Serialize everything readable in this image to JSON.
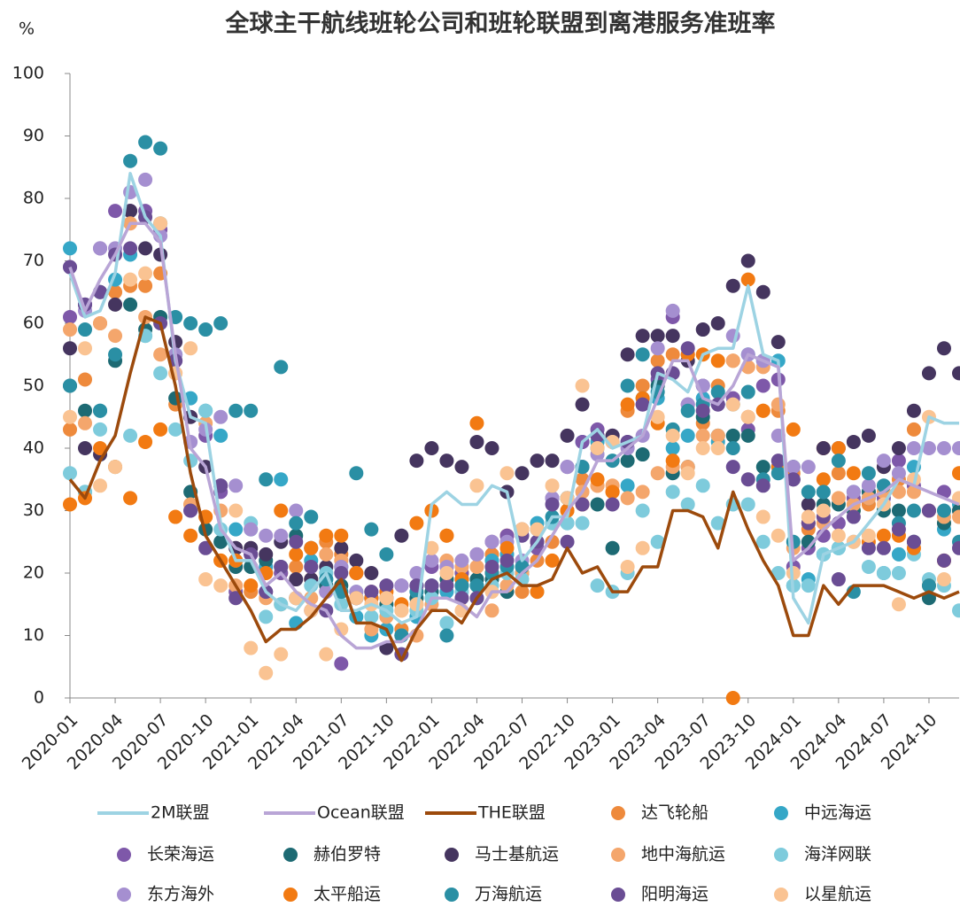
{
  "chart_data": {
    "type": "line",
    "title": "全球主干航线班轮公司和班轮联盟到离港服务准班率",
    "ylabel": "%",
    "categories": [
      "2020-01",
      null,
      null,
      "2020-04",
      null,
      null,
      "2020-07",
      null,
      null,
      "2020-10",
      null,
      null,
      "2021-01",
      null,
      null,
      "2021-04",
      null,
      null,
      "2021-07",
      null,
      null,
      "2021-10",
      null,
      null,
      "2022-01",
      null,
      null,
      "2022-04",
      null,
      null,
      "2022-07",
      null,
      null,
      "2022-10",
      null,
      null,
      "2023-01",
      null,
      null,
      "2023-04",
      null,
      null,
      "2023-07",
      null,
      null,
      "2023-10",
      null,
      null,
      "2024-01",
      null,
      null,
      "2024-04",
      null,
      null,
      "2024-07",
      null,
      null,
      "2024-10",
      null,
      null
    ],
    "ylim": [
      0,
      100
    ],
    "yticks": [
      0,
      10,
      20,
      30,
      40,
      50,
      60,
      70,
      80,
      90,
      100
    ],
    "grid": false,
    "series": [
      {
        "name": "2M联盟",
        "mode": "line",
        "color": "#9dd3e3",
        "values": [
          68,
          61,
          62,
          68,
          84,
          77,
          74,
          54,
          45,
          44,
          28,
          22,
          22,
          17,
          15,
          14,
          17,
          20,
          14,
          14,
          15,
          14,
          12,
          13,
          31,
          33,
          31,
          31,
          34,
          33,
          22,
          25,
          29,
          29,
          41,
          43,
          40,
          41,
          42,
          52,
          51,
          49,
          55,
          56,
          56,
          66,
          55,
          54,
          16,
          12,
          23,
          24,
          25,
          28,
          31,
          35,
          34,
          45,
          44,
          44
        ]
      },
      {
        "name": "Ocean联盟",
        "mode": "line",
        "color": "#b9a5d6",
        "values": [
          69,
          62,
          67,
          71,
          76,
          76,
          73,
          55,
          40,
          37,
          27,
          24,
          23,
          18,
          20,
          17,
          15,
          14,
          10,
          8,
          8,
          9,
          9,
          11,
          16,
          16,
          15,
          13,
          17,
          17,
          20,
          22,
          26,
          30,
          33,
          38,
          38,
          40,
          42,
          48,
          54,
          54,
          48,
          47,
          50,
          55,
          54,
          53,
          22,
          24,
          27,
          29,
          31,
          32,
          33,
          35,
          34,
          33,
          32,
          31
        ]
      },
      {
        "name": "THE联盟",
        "mode": "line",
        "color": "#9c4a0c",
        "values": [
          35,
          32,
          38,
          42,
          52,
          61,
          60,
          50,
          36,
          26,
          22,
          18,
          14,
          9,
          11,
          11,
          13,
          16,
          19,
          12,
          12,
          11,
          6,
          11,
          14,
          14,
          12,
          16,
          19,
          20,
          18,
          18,
          19,
          24,
          20,
          21,
          17,
          17,
          21,
          21,
          30,
          30,
          29,
          24,
          33,
          27,
          22,
          18,
          10,
          10,
          18,
          15,
          18,
          18,
          18,
          17,
          16,
          17,
          16,
          17
        ]
      },
      {
        "name": "达飞轮船",
        "mode": "markers",
        "color": "#ee8a3c",
        "values": [
          43,
          51,
          60,
          65,
          66,
          66,
          68,
          47,
          31,
          29,
          22,
          22,
          17,
          20,
          20,
          21,
          19,
          25,
          23,
          20,
          17,
          16,
          11,
          15,
          30,
          26,
          20,
          21,
          23,
          26,
          17,
          22,
          25,
          30,
          35,
          34,
          33,
          46,
          50,
          54,
          55,
          55,
          44,
          50,
          54,
          45,
          46,
          46,
          36,
          27,
          40,
          36,
          30,
          31,
          37,
          35,
          43,
          30,
          28,
          30
        ]
      },
      {
        "name": "中远海运",
        "mode": "markers",
        "color": "#35a7c7",
        "values": [
          72,
          33,
          46,
          67,
          71,
          58,
          76,
          55,
          48,
          46,
          42,
          27,
          27,
          21,
          35,
          12,
          22,
          19,
          21,
          13,
          10,
          11,
          10,
          13,
          17,
          17,
          18,
          18,
          22,
          23,
          20,
          28,
          28,
          28,
          41,
          41,
          41,
          34,
          48,
          48,
          40,
          42,
          48,
          41,
          47,
          55,
          54,
          54,
          18,
          19,
          23,
          24,
          33,
          32,
          20,
          23,
          37,
          30,
          27,
          31
        ]
      },
      {
        "name": "长荣海运",
        "mode": "markers",
        "color": "#7e58a9",
        "values": [
          61,
          63,
          72,
          78,
          78,
          78,
          75,
          54,
          30,
          42,
          33,
          17,
          23,
          17,
          20,
          16,
          14,
          17,
          5.5,
          20,
          16,
          16,
          18,
          18,
          21,
          21,
          20,
          23,
          25,
          26,
          27,
          24,
          32,
          37,
          41,
          43,
          42,
          41,
          47,
          51,
          61,
          47,
          50,
          47,
          48,
          43,
          50,
          51,
          21,
          24,
          26,
          28,
          32,
          33,
          32,
          38,
          34,
          30,
          33,
          30
        ]
      },
      {
        "name": "赫伯罗特",
        "mode": "markers",
        "color": "#1d6a73",
        "values": [
          50,
          46,
          65,
          54,
          63,
          59,
          61,
          48,
          33,
          27,
          25,
          21,
          21,
          22,
          21,
          26,
          24,
          18,
          18,
          16,
          16,
          15,
          10,
          16,
          17,
          19,
          19,
          19,
          19,
          17,
          20,
          25,
          28,
          32,
          37,
          31,
          24,
          38,
          39,
          50,
          36,
          37,
          45,
          42,
          42,
          42,
          37,
          37,
          37,
          25,
          31,
          31,
          30,
          33,
          30,
          30,
          25,
          16,
          28,
          30
        ]
      },
      {
        "name": "马士基航运",
        "mode": "markers",
        "color": "#45355f",
        "values": [
          56,
          40,
          39,
          63,
          78,
          72,
          71,
          57,
          45,
          37,
          34,
          24,
          24,
          23,
          25,
          19,
          19,
          21,
          24,
          22,
          20,
          8,
          26,
          38,
          40,
          38,
          37,
          41,
          40,
          33,
          36,
          38,
          38,
          42,
          47,
          42,
          42,
          55,
          58,
          58,
          58,
          54,
          59,
          60,
          66,
          70,
          65,
          57,
          35,
          31,
          40,
          40,
          41,
          42,
          37,
          40,
          46,
          52,
          56,
          52
        ]
      },
      {
        "name": "地中海航运",
        "mode": "markers",
        "color": "#f4a66c",
        "values": [
          59,
          44,
          60,
          58,
          76,
          61,
          55,
          52,
          31,
          44,
          30,
          18,
          18,
          16,
          15,
          16,
          16,
          23,
          22,
          20,
          11,
          13,
          14,
          10,
          15,
          22,
          21,
          21,
          14,
          18,
          20,
          25,
          28,
          30,
          33,
          34,
          34,
          32,
          33,
          36,
          37,
          37,
          42,
          42,
          54,
          53,
          53,
          47,
          24,
          28,
          28,
          32,
          31,
          32,
          33,
          33,
          33,
          30,
          29,
          29
        ]
      },
      {
        "name": "海洋网联",
        "mode": "markers",
        "color": "#7ecbdc",
        "values": [
          36,
          33,
          43,
          37,
          42,
          58,
          52,
          43,
          38,
          46,
          27,
          22,
          28,
          13,
          15,
          16,
          18,
          20,
          15,
          17,
          13,
          14,
          10,
          14,
          16,
          12,
          17,
          16,
          18,
          20,
          19,
          17,
          28,
          28,
          28,
          18,
          17,
          20,
          30,
          25,
          33,
          31,
          34,
          28,
          31,
          31,
          25,
          20,
          18,
          18,
          23,
          24,
          25,
          21,
          20,
          20,
          23,
          19,
          18,
          14
        ]
      },
      {
        "name": "东方海外",
        "mode": "markers",
        "color": "#a58fd0",
        "values": [
          69,
          62,
          72,
          72,
          81,
          83,
          74,
          55,
          41,
          43,
          45,
          34,
          27,
          26,
          26,
          30,
          24,
          17,
          21,
          17,
          17,
          18,
          18,
          20,
          22,
          21,
          22,
          23,
          25,
          25,
          22,
          25,
          32,
          37,
          37,
          39,
          41,
          40,
          42,
          56,
          62,
          47,
          50,
          47,
          58,
          55,
          54,
          42,
          37,
          37,
          33,
          40,
          33,
          34,
          38,
          36,
          40,
          40,
          40,
          40
        ]
      },
      {
        "name": "太平船运",
        "mode": "markers",
        "color": "#f27a12",
        "values": [
          31,
          32,
          40,
          37,
          32,
          41,
          43,
          29,
          26,
          29,
          22,
          22,
          18,
          20,
          30,
          23,
          24,
          26,
          26,
          20,
          16,
          17,
          15,
          28,
          30,
          26,
          19,
          44,
          20,
          24,
          27,
          17,
          22,
          30,
          31,
          35,
          33,
          47,
          48,
          44,
          38,
          55,
          55,
          54,
          0,
          67,
          46,
          37,
          43,
          28,
          35,
          40,
          36,
          25,
          26,
          26,
          24,
          18,
          22,
          36
        ]
      },
      {
        "name": "万海航运",
        "mode": "markers",
        "color": "#2a8fa4",
        "values": [
          50,
          59,
          46,
          55,
          86,
          89,
          88,
          61,
          60,
          59,
          60,
          46,
          46,
          35,
          53,
          28,
          29,
          19,
          17,
          36,
          27,
          23,
          10,
          17,
          18,
          10,
          18,
          18,
          20,
          21,
          21,
          27,
          29,
          32,
          37,
          40,
          38,
          50,
          55,
          49,
          43,
          46,
          47,
          49,
          40,
          49,
          35,
          36,
          25,
          33,
          33,
          38,
          17,
          36,
          34,
          28,
          30,
          18,
          30,
          25
        ]
      },
      {
        "name": "阳明海运",
        "mode": "markers",
        "color": "#6a4d94",
        "values": [
          69,
          63,
          65,
          71,
          72,
          77,
          60,
          54,
          30,
          24,
          34,
          16,
          23,
          17,
          21,
          25,
          21,
          14,
          20,
          16,
          17,
          18,
          7,
          18,
          18,
          18,
          16,
          16,
          21,
          22,
          26,
          25,
          31,
          25,
          31,
          42,
          31,
          41,
          47,
          52,
          52,
          56,
          46,
          47,
          37,
          35,
          34,
          38,
          35,
          28,
          29,
          19,
          29,
          24,
          24,
          27,
          25,
          30,
          22,
          24
        ]
      },
      {
        "name": "以星航运",
        "mode": "markers",
        "color": "#fac392",
        "values": [
          45,
          56,
          34,
          37,
          67,
          68,
          76,
          52,
          56,
          19,
          18,
          30,
          8,
          4,
          7,
          16,
          14,
          7,
          11,
          16,
          15,
          16,
          14,
          15,
          24,
          20,
          14,
          34,
          17,
          36,
          27,
          27,
          34,
          32,
          50,
          40,
          41,
          21,
          24,
          45,
          42,
          36,
          40,
          40,
          47,
          45,
          29,
          26,
          20,
          29,
          30,
          26,
          25,
          26,
          31,
          15,
          35,
          45,
          19,
          32
        ]
      }
    ]
  }
}
